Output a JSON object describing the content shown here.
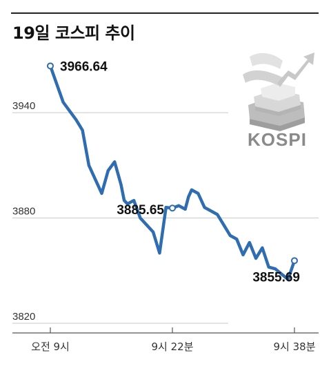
{
  "chart_data": {
    "type": "line",
    "title": "19일 코스피 추이",
    "x_ticks": [
      "오전 9시",
      "9시 22분",
      "9시 38분"
    ],
    "y_ticks": [
      3820,
      3880,
      3940
    ],
    "ylim": [
      3820,
      3968
    ],
    "xlim": [
      0,
      38
    ],
    "grid": true,
    "series": [
      {
        "x": [
          0,
          2,
          4,
          5,
          6,
          7,
          8,
          9,
          10,
          11,
          11.5,
          12,
          13,
          14,
          15,
          16,
          17,
          18,
          19,
          20,
          21,
          21.5,
          22,
          23,
          24,
          25,
          26,
          27,
          28,
          29,
          30,
          31,
          32,
          33,
          34,
          35,
          36,
          37,
          38
        ],
        "values": [
          3966.64,
          3946,
          3936,
          3930,
          3910,
          3902,
          3894,
          3907,
          3912,
          3899,
          3890,
          3888,
          3890,
          3880,
          3876,
          3872,
          3860,
          3886,
          3885.65,
          3887,
          3885,
          3892,
          3896,
          3894,
          3886,
          3884,
          3882,
          3876,
          3870,
          3868,
          3859,
          3866,
          3857,
          3863,
          3852,
          3851,
          3848,
          3845,
          3855.69
        ],
        "color": "#2f6db0"
      }
    ],
    "annotations": [
      {
        "text": "3966.64",
        "x": 0,
        "value": 3966.64
      },
      {
        "text": "3885.65",
        "x": 19,
        "value": 3885.65
      },
      {
        "text": "3855.69",
        "x": 38,
        "value": 3855.69
      }
    ]
  },
  "logo": {
    "text": "KOSPI"
  }
}
